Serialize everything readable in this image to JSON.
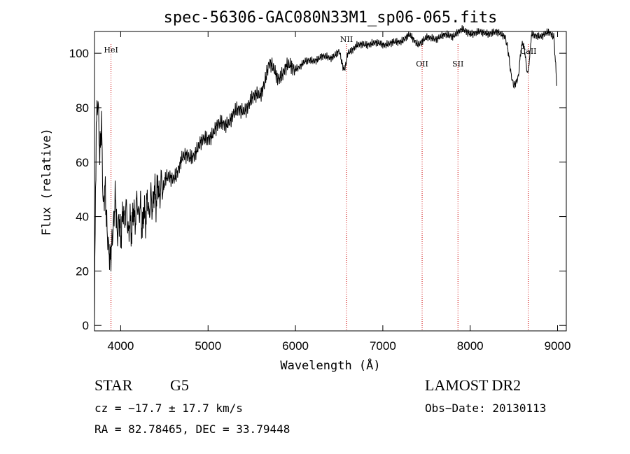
{
  "chart_data": {
    "type": "line",
    "title": "spec-56306-GAC080N33M1_sp06-065.fits",
    "xlabel": "Wavelength (Å)",
    "ylabel": "Flux (relative)",
    "xlim": [
      3700,
      9100
    ],
    "ylim": [
      -2,
      108
    ],
    "xticks": [
      4000,
      5000,
      6000,
      7000,
      8000,
      9000
    ],
    "yticks": [
      0,
      20,
      40,
      60,
      80,
      100
    ],
    "series": [
      {
        "x": [
          3700,
          3720,
          3740,
          3760,
          3780,
          3800,
          3820,
          3840,
          3860,
          3880,
          3900,
          3920,
          3940,
          3960,
          3980,
          4000,
          4050,
          4100,
          4150,
          4200,
          4250,
          4300,
          4350,
          4400,
          4450,
          4500,
          4600,
          4700,
          4800,
          4900,
          5000,
          5100,
          5200,
          5300,
          5400,
          5500,
          5600,
          5700,
          5800,
          5900,
          6000,
          6100,
          6200,
          6300,
          6400,
          6500,
          6563,
          6600,
          6700,
          6800,
          6900,
          7000,
          7100,
          7200,
          7300,
          7400,
          7500,
          7600,
          7700,
          7800,
          7900,
          8000,
          8100,
          8200,
          8300,
          8400,
          8498,
          8542,
          8600,
          8662,
          8700,
          8800,
          8900,
          8960,
          8990
        ],
        "y": [
          5,
          70,
          80,
          60,
          75,
          45,
          55,
          40,
          30,
          24,
          28,
          35,
          45,
          30,
          40,
          36,
          42,
          35,
          40,
          44,
          38,
          43,
          45,
          48,
          50,
          52,
          55,
          60,
          63,
          65,
          70,
          72,
          75,
          77,
          80,
          82,
          86,
          95,
          92,
          94,
          95,
          96,
          98,
          98,
          99,
          100,
          94,
          101,
          102,
          104,
          103,
          104,
          103,
          105,
          106,
          104,
          105,
          106,
          106,
          107,
          108,
          108,
          107,
          108,
          107,
          107,
          87,
          90,
          105,
          92,
          106,
          107,
          107,
          106,
          88
        ]
      }
    ],
    "spectral_lines": [
      {
        "label": "HeI",
        "wavelength": 3889
      },
      {
        "label": "NII",
        "wavelength": 6585
      },
      {
        "label": "OII",
        "wavelength": 7450
      },
      {
        "label": "SII",
        "wavelength": 7860
      },
      {
        "label": "CaII",
        "wavelength": 8665
      }
    ],
    "grid": false,
    "legend": "none"
  },
  "info": {
    "object_class": "STAR",
    "subclass": "G5",
    "survey": "LAMOST DR2",
    "cz_text": "cz = −17.7 ± 17.7 km/s",
    "obs_date_text": "Obs−Date: 20130113",
    "coords_text": "RA =  82.78465, DEC =  33.79448"
  }
}
